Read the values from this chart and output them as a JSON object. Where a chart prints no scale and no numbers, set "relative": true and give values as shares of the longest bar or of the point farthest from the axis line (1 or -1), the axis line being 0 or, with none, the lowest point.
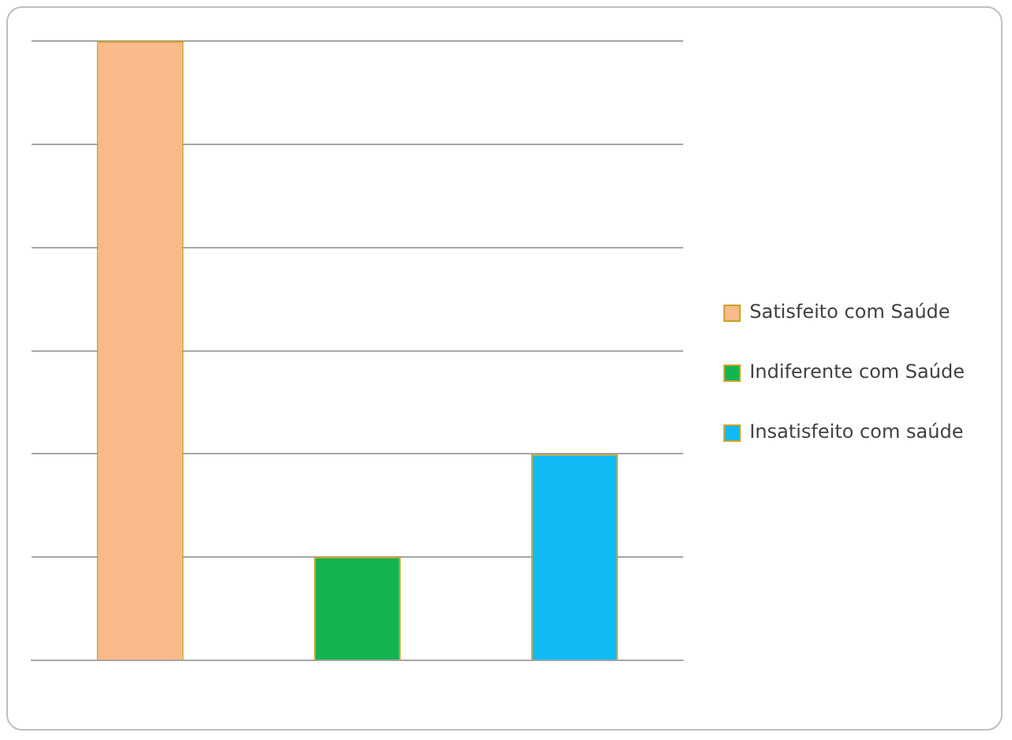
{
  "chart_data": {
    "type": "bar",
    "relative": true,
    "stacked": true,
    "grid": "y",
    "legend": "right",
    "categories": [
      null,
      null,
      null
    ],
    "series": [
      {
        "name": "Satisfeito com Saúde",
        "color": "#f9b98a",
        "values": [
          1,
          null,
          null
        ]
      },
      {
        "name": "Indiferente com Saúde",
        "color": "#13b450",
        "values": [
          null,
          0.167,
          null
        ]
      },
      {
        "name": "Insatisfeito com saúde",
        "color": "#0fbaf5",
        "values": [
          null,
          null,
          0.333
        ]
      }
    ]
  }
}
